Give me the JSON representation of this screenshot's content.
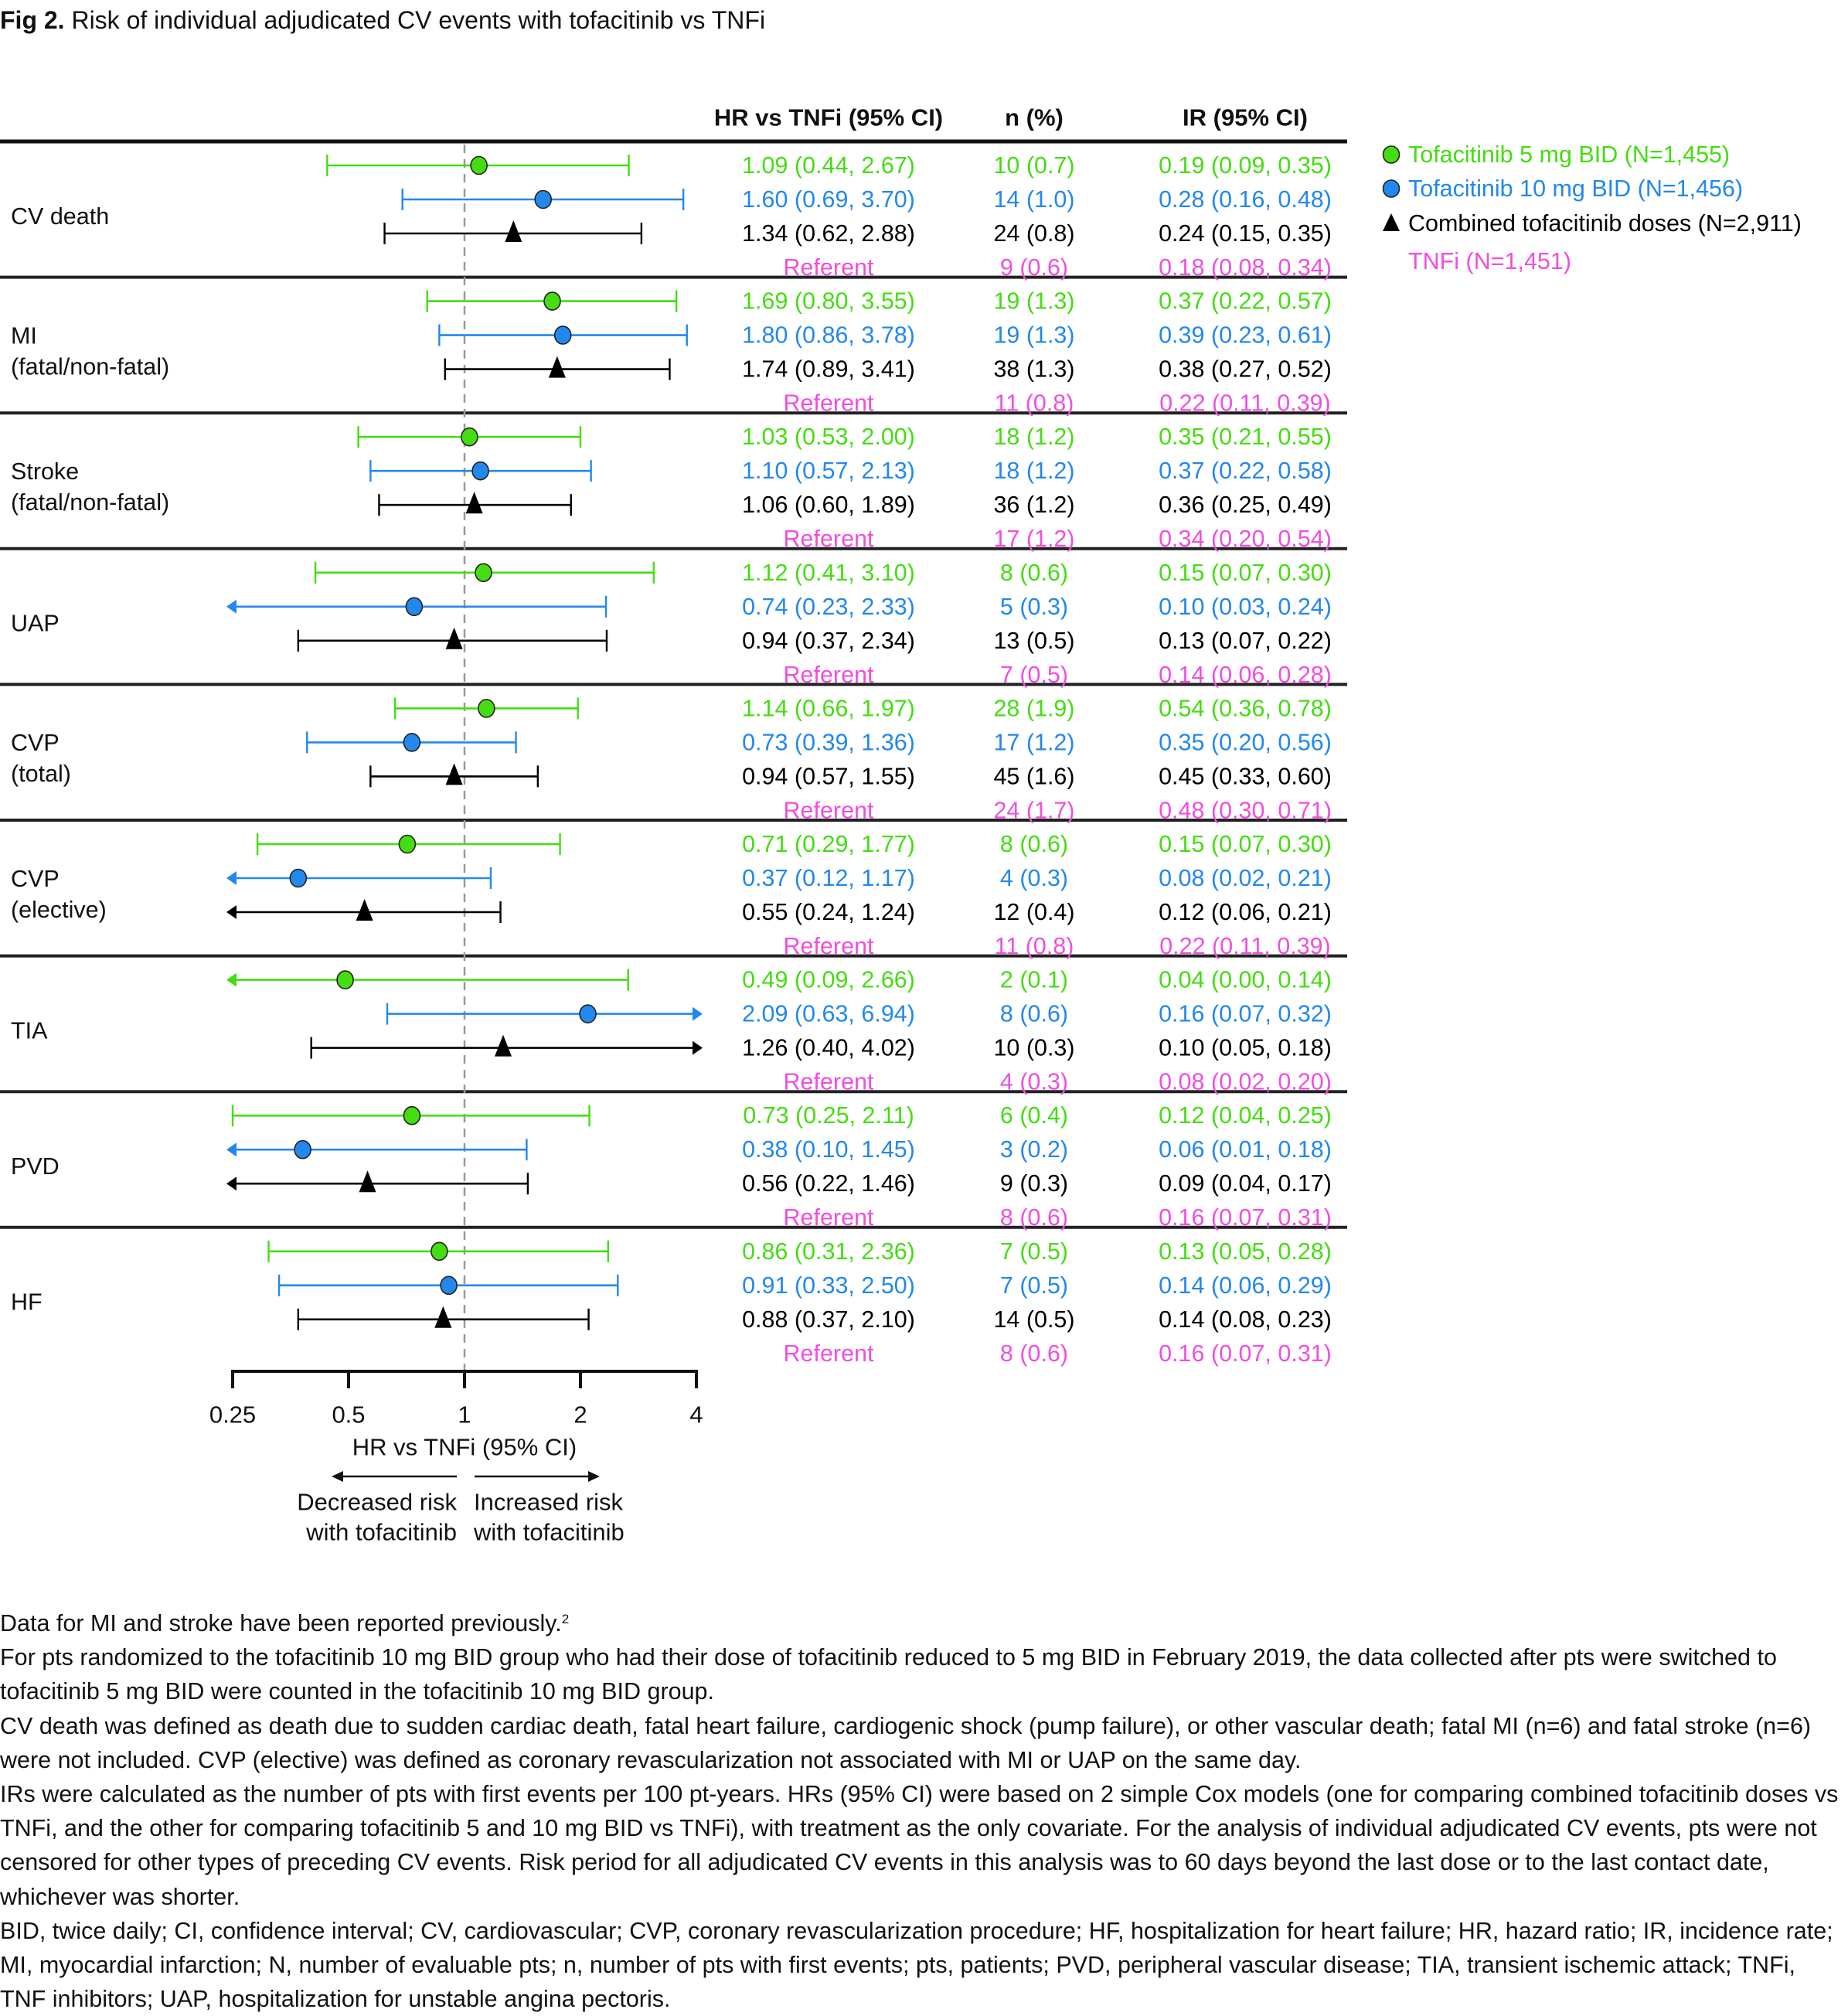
{
  "figure": {
    "title_prefix": "Fig 2.",
    "title_text": "Risk of individual adjudicated CV events with tofacitinib vs TNFi"
  },
  "colors": {
    "tofa5": "#44dd11",
    "tofa10": "#2288ee",
    "combined": "#000000",
    "tnfi": "#f04ee0",
    "divider": "#222222",
    "refline": "#999999"
  },
  "chart_data": {
    "type": "forest",
    "title": "Risk of individual adjudicated CV events with tofacitinib vs TNFi",
    "xlabel": "HR vs TNFi (95% CI)",
    "xscale": "log2",
    "xlim": [
      0.25,
      4
    ],
    "xticks": [
      0.25,
      0.5,
      1,
      2,
      4
    ],
    "xtick_labels": [
      "0.25",
      "0.5",
      "1",
      "2",
      "4"
    ],
    "reference_line": 1,
    "direction_left": [
      "Decreased risk",
      "with tofacitinib"
    ],
    "direction_right": [
      "Increased risk",
      "with tofacitinib"
    ],
    "columns": [
      "HR vs TNFi (95% CI)",
      "n (%)",
      "IR (95% CI)"
    ],
    "legend": [
      {
        "key": "tofa5",
        "marker": "circle",
        "label": "Tofacitinib 5 mg BID (N=1,455)"
      },
      {
        "key": "tofa10",
        "marker": "circle",
        "label": "Tofacitinib 10 mg BID (N=1,456)"
      },
      {
        "key": "combined",
        "marker": "triangle",
        "label": "Combined tofacitinib doses (N=2,911)"
      },
      {
        "key": "tnfi",
        "marker": "none",
        "label": "TNFi (N=1,451)"
      }
    ],
    "legend_position": "top-right",
    "groups": [
      {
        "label": [
          "CV death"
        ],
        "rows": [
          {
            "key": "tofa5",
            "hr": 1.09,
            "lo": 0.44,
            "hi": 2.67,
            "hr_text": "1.09 (0.44, 2.67)",
            "n_text": "10 (0.7)",
            "ir_text": "0.19 (0.09, 0.35)"
          },
          {
            "key": "tofa10",
            "hr": 1.6,
            "lo": 0.69,
            "hi": 3.7,
            "hr_text": "1.60 (0.69, 3.70)",
            "n_text": "14 (1.0)",
            "ir_text": "0.28 (0.16, 0.48)"
          },
          {
            "key": "combined",
            "hr": 1.34,
            "lo": 0.62,
            "hi": 2.88,
            "hr_text": "1.34 (0.62, 2.88)",
            "n_text": "24 (0.8)",
            "ir_text": "0.24 (0.15, 0.35)"
          },
          {
            "key": "tnfi",
            "hr": null,
            "lo": null,
            "hi": null,
            "hr_text": "Referent",
            "n_text": "9 (0.6)",
            "ir_text": "0.18 (0.08, 0.34)"
          }
        ]
      },
      {
        "label": [
          "MI",
          "(fatal/non-fatal)"
        ],
        "rows": [
          {
            "key": "tofa5",
            "hr": 1.69,
            "lo": 0.8,
            "hi": 3.55,
            "hr_text": "1.69 (0.80, 3.55)",
            "n_text": "19 (1.3)",
            "ir_text": "0.37 (0.22, 0.57)"
          },
          {
            "key": "tofa10",
            "hr": 1.8,
            "lo": 0.86,
            "hi": 3.78,
            "hr_text": "1.80 (0.86, 3.78)",
            "n_text": "19 (1.3)",
            "ir_text": "0.39 (0.23, 0.61)"
          },
          {
            "key": "combined",
            "hr": 1.74,
            "lo": 0.89,
            "hi": 3.41,
            "hr_text": "1.74 (0.89, 3.41)",
            "n_text": "38 (1.3)",
            "ir_text": "0.38 (0.27, 0.52)"
          },
          {
            "key": "tnfi",
            "hr": null,
            "lo": null,
            "hi": null,
            "hr_text": "Referent",
            "n_text": "11 (0.8)",
            "ir_text": "0.22 (0.11, 0.39)"
          }
        ]
      },
      {
        "label": [
          "Stroke",
          "(fatal/non-fatal)"
        ],
        "rows": [
          {
            "key": "tofa5",
            "hr": 1.03,
            "lo": 0.53,
            "hi": 2.0,
            "hr_text": "1.03 (0.53, 2.00)",
            "n_text": "18 (1.2)",
            "ir_text": "0.35 (0.21, 0.55)"
          },
          {
            "key": "tofa10",
            "hr": 1.1,
            "lo": 0.57,
            "hi": 2.13,
            "hr_text": "1.10 (0.57, 2.13)",
            "n_text": "18 (1.2)",
            "ir_text": "0.37 (0.22, 0.58)"
          },
          {
            "key": "combined",
            "hr": 1.06,
            "lo": 0.6,
            "hi": 1.89,
            "hr_text": "1.06 (0.60, 1.89)",
            "n_text": "36 (1.2)",
            "ir_text": "0.36 (0.25, 0.49)"
          },
          {
            "key": "tnfi",
            "hr": null,
            "lo": null,
            "hi": null,
            "hr_text": "Referent",
            "n_text": "17 (1.2)",
            "ir_text": "0.34 (0.20, 0.54)"
          }
        ]
      },
      {
        "label": [
          "UAP"
        ],
        "rows": [
          {
            "key": "tofa5",
            "hr": 1.12,
            "lo": 0.41,
            "hi": 3.1,
            "hr_text": "1.12 (0.41, 3.10)",
            "n_text": "8 (0.6)",
            "ir_text": "0.15 (0.07, 0.30)"
          },
          {
            "key": "tofa10",
            "hr": 0.74,
            "lo": 0.23,
            "hi": 2.33,
            "hr_text": "0.74 (0.23, 2.33)",
            "n_text": "5 (0.3)",
            "ir_text": "0.10 (0.03, 0.24)"
          },
          {
            "key": "combined",
            "hr": 0.94,
            "lo": 0.37,
            "hi": 2.34,
            "hr_text": "0.94 (0.37, 2.34)",
            "n_text": "13 (0.5)",
            "ir_text": "0.13 (0.07, 0.22)"
          },
          {
            "key": "tnfi",
            "hr": null,
            "lo": null,
            "hi": null,
            "hr_text": "Referent",
            "n_text": "7 (0.5)",
            "ir_text": "0.14 (0.06, 0.28)"
          }
        ]
      },
      {
        "label": [
          "CVP",
          "(total)"
        ],
        "rows": [
          {
            "key": "tofa5",
            "hr": 1.14,
            "lo": 0.66,
            "hi": 1.97,
            "hr_text": "1.14 (0.66, 1.97)",
            "n_text": "28 (1.9)",
            "ir_text": "0.54 (0.36, 0.78)"
          },
          {
            "key": "tofa10",
            "hr": 0.73,
            "lo": 0.39,
            "hi": 1.36,
            "hr_text": "0.73 (0.39, 1.36)",
            "n_text": "17 (1.2)",
            "ir_text": "0.35 (0.20, 0.56)"
          },
          {
            "key": "combined",
            "hr": 0.94,
            "lo": 0.57,
            "hi": 1.55,
            "hr_text": "0.94 (0.57, 1.55)",
            "n_text": "45 (1.6)",
            "ir_text": "0.45 (0.33, 0.60)"
          },
          {
            "key": "tnfi",
            "hr": null,
            "lo": null,
            "hi": null,
            "hr_text": "Referent",
            "n_text": "24 (1.7)",
            "ir_text": "0.48 (0.30, 0.71)"
          }
        ]
      },
      {
        "label": [
          "CVP",
          "(elective)"
        ],
        "rows": [
          {
            "key": "tofa5",
            "hr": 0.71,
            "lo": 0.29,
            "hi": 1.77,
            "hr_text": "0.71 (0.29, 1.77)",
            "n_text": "8 (0.6)",
            "ir_text": "0.15 (0.07, 0.30)"
          },
          {
            "key": "tofa10",
            "hr": 0.37,
            "lo": 0.12,
            "hi": 1.17,
            "hr_text": "0.37 (0.12, 1.17)",
            "n_text": "4 (0.3)",
            "ir_text": "0.08 (0.02, 0.21)"
          },
          {
            "key": "combined",
            "hr": 0.55,
            "lo": 0.24,
            "hi": 1.24,
            "hr_text": "0.55 (0.24, 1.24)",
            "n_text": "12 (0.4)",
            "ir_text": "0.12 (0.06, 0.21)"
          },
          {
            "key": "tnfi",
            "hr": null,
            "lo": null,
            "hi": null,
            "hr_text": "Referent",
            "n_text": "11 (0.8)",
            "ir_text": "0.22 (0.11, 0.39)"
          }
        ]
      },
      {
        "label": [
          "TIA"
        ],
        "rows": [
          {
            "key": "tofa5",
            "hr": 0.49,
            "lo": 0.09,
            "hi": 2.66,
            "hr_text": "0.49 (0.09, 2.66)",
            "n_text": "2 (0.1)",
            "ir_text": "0.04 (0.00, 0.14)"
          },
          {
            "key": "tofa10",
            "hr": 2.09,
            "lo": 0.63,
            "hi": 6.94,
            "hr_text": "2.09 (0.63, 6.94)",
            "n_text": "8 (0.6)",
            "ir_text": "0.16 (0.07, 0.32)"
          },
          {
            "key": "combined",
            "hr": 1.26,
            "lo": 0.4,
            "hi": 4.02,
            "hr_text": "1.26 (0.40, 4.02)",
            "n_text": "10 (0.3)",
            "ir_text": "0.10 (0.05, 0.18)"
          },
          {
            "key": "tnfi",
            "hr": null,
            "lo": null,
            "hi": null,
            "hr_text": "Referent",
            "n_text": "4 (0.3)",
            "ir_text": "0.08 (0.02, 0.20)"
          }
        ]
      },
      {
        "label": [
          "PVD"
        ],
        "rows": [
          {
            "key": "tofa5",
            "hr": 0.73,
            "lo": 0.25,
            "hi": 2.11,
            "hr_text": "0.73 (0.25, 2.11)",
            "n_text": "6 (0.4)",
            "ir_text": "0.12 (0.04, 0.25)"
          },
          {
            "key": "tofa10",
            "hr": 0.38,
            "lo": 0.1,
            "hi": 1.45,
            "hr_text": "0.38 (0.10, 1.45)",
            "n_text": "3 (0.2)",
            "ir_text": "0.06 (0.01, 0.18)"
          },
          {
            "key": "combined",
            "hr": 0.56,
            "lo": 0.22,
            "hi": 1.46,
            "hr_text": "0.56 (0.22, 1.46)",
            "n_text": "9 (0.3)",
            "ir_text": "0.09 (0.04, 0.17)"
          },
          {
            "key": "tnfi",
            "hr": null,
            "lo": null,
            "hi": null,
            "hr_text": "Referent",
            "n_text": "8 (0.6)",
            "ir_text": "0.16 (0.07, 0.31)"
          }
        ]
      },
      {
        "label": [
          "HF"
        ],
        "rows": [
          {
            "key": "tofa5",
            "hr": 0.86,
            "lo": 0.31,
            "hi": 2.36,
            "hr_text": "0.86 (0.31, 2.36)",
            "n_text": "7 (0.5)",
            "ir_text": "0.13 (0.05, 0.28)"
          },
          {
            "key": "tofa10",
            "hr": 0.91,
            "lo": 0.33,
            "hi": 2.5,
            "hr_text": "0.91 (0.33, 2.50)",
            "n_text": "7 (0.5)",
            "ir_text": "0.14 (0.06, 0.29)"
          },
          {
            "key": "combined",
            "hr": 0.88,
            "lo": 0.37,
            "hi": 2.1,
            "hr_text": "0.88 (0.37, 2.10)",
            "n_text": "14 (0.5)",
            "ir_text": "0.14 (0.08, 0.23)"
          },
          {
            "key": "tnfi",
            "hr": null,
            "lo": null,
            "hi": null,
            "hr_text": "Referent",
            "n_text": "8 (0.6)",
            "ir_text": "0.16 (0.07, 0.31)"
          }
        ]
      }
    ]
  },
  "footnotes": {
    "line1_text": "Data for MI and stroke have been reported previously.",
    "line1_ref": "2",
    "paragraphs": [
      "For pts randomized to the tofacitinib 10 mg BID group who had their dose of tofacitinib reduced to 5 mg BID in February 2019, the data collected after pts were switched to tofacitinib 5 mg BID were counted in the tofacitinib 10 mg BID group.",
      "CV death was defined as death due to sudden cardiac death, fatal heart failure, cardiogenic shock (pump failure), or other vascular death; fatal MI (n=6) and fatal stroke (n=6) were not included. CVP (elective) was defined as coronary revascularization not associated with MI or UAP on the same day.",
      "IRs were calculated as the number of pts with first events per 100 pt-years. HRs (95% CI) were based on 2 simple Cox models (one for comparing combined tofacitinib doses vs TNFi, and the other for comparing tofacitinib 5 and 10 mg BID vs TNFi), with treatment as the only covariate. For the analysis of individual adjudicated CV events, pts were not censored for other types of preceding CV events. Risk period for all adjudicated CV events in this analysis was to 60 days beyond the last dose or to the last contact date, whichever was shorter.",
      "BID, twice daily; CI, confidence interval; CV, cardiovascular; CVP, coronary revascularization procedure; HF, hospitalization for heart failure; HR, hazard ratio; IR, incidence rate; MI, myocardial infarction; N, number of evaluable pts; n, number of pts with first events; pts, patients; PVD, peripheral vascular disease; TIA, transient ischemic attack; TNFi, TNF inhibitors; UAP, hospitalization for unstable angina pectoris."
    ]
  }
}
